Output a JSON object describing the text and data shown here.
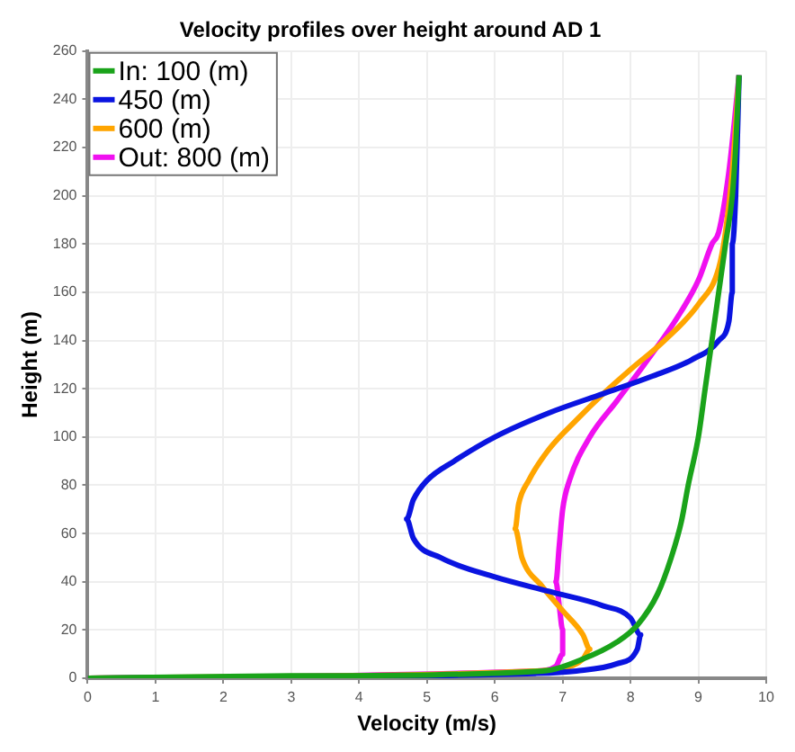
{
  "chart_data": {
    "type": "line",
    "title": "Velocity profiles over height around AD 1",
    "xlabel": "Velocity (m/s)",
    "ylabel": "Height (m)",
    "xlim": [
      0,
      10
    ],
    "xticks": [
      0,
      1,
      2,
      3,
      4,
      5,
      6,
      7,
      8,
      9,
      10
    ],
    "ylim": [
      0,
      260
    ],
    "yticks": [
      0,
      20,
      40,
      60,
      80,
      100,
      120,
      140,
      160,
      180,
      200,
      220,
      240,
      260
    ],
    "grid": true,
    "legend": "top left",
    "marker": "none",
    "line_style": "solid",
    "series": [
      {
        "name": "In: 100 (m)",
        "color": "#1aa31a",
        "x": [
          0,
          3,
          6.7,
          7.3,
          7.8,
          8.1,
          8.4,
          8.6,
          8.75,
          8.85,
          9.0,
          9.1,
          9.2,
          9.3,
          9.4,
          9.5,
          9.55,
          9.6
        ],
        "values": [
          0,
          1,
          3,
          8,
          15,
          22,
          35,
          50,
          65,
          80,
          100,
          120,
          140,
          160,
          180,
          200,
          220,
          250
        ]
      },
      {
        "name": "450 (m)",
        "color": "#0a14e0",
        "x": [
          0,
          6.6,
          7.2,
          7.8,
          8.1,
          8.15,
          8.0,
          7.6,
          6.8,
          6.0,
          5.2,
          4.8,
          4.7,
          4.8,
          5.0,
          5.4,
          6.0,
          6.8,
          7.6,
          8.3,
          8.9,
          9.3,
          9.45,
          9.5,
          9.5,
          9.55,
          9.6
        ],
        "values": [
          0,
          2,
          3,
          6,
          12,
          18,
          25,
          30,
          36,
          42,
          50,
          58,
          66,
          74,
          82,
          90,
          100,
          110,
          118,
          125,
          132,
          140,
          148,
          160,
          180,
          200,
          250
        ]
      },
      {
        "name": "600 (m)",
        "color": "#ffa500",
        "x": [
          0,
          6.6,
          7.0,
          7.3,
          7.4,
          7.3,
          7.0,
          6.7,
          6.4,
          6.3,
          6.35,
          6.5,
          6.8,
          7.2,
          7.6,
          8.0,
          8.5,
          9.0,
          9.3,
          9.4,
          9.5,
          9.6
        ],
        "values": [
          0,
          3,
          4,
          8,
          12,
          18,
          28,
          38,
          50,
          62,
          72,
          82,
          95,
          107,
          118,
          128,
          140,
          155,
          170,
          185,
          210,
          250
        ]
      },
      {
        "name": "Out: 800 (m)",
        "color": "#f010f0",
        "x": [
          0,
          6.6,
          6.9,
          7.0,
          7.0,
          6.95,
          6.9,
          6.95,
          7.0,
          7.1,
          7.4,
          7.8,
          8.2,
          8.7,
          9.0,
          9.2,
          9.3,
          9.45,
          9.6
        ],
        "values": [
          0,
          3,
          5,
          10,
          20,
          30,
          40,
          55,
          70,
          82,
          100,
          115,
          130,
          150,
          165,
          180,
          185,
          210,
          250
        ]
      }
    ]
  }
}
